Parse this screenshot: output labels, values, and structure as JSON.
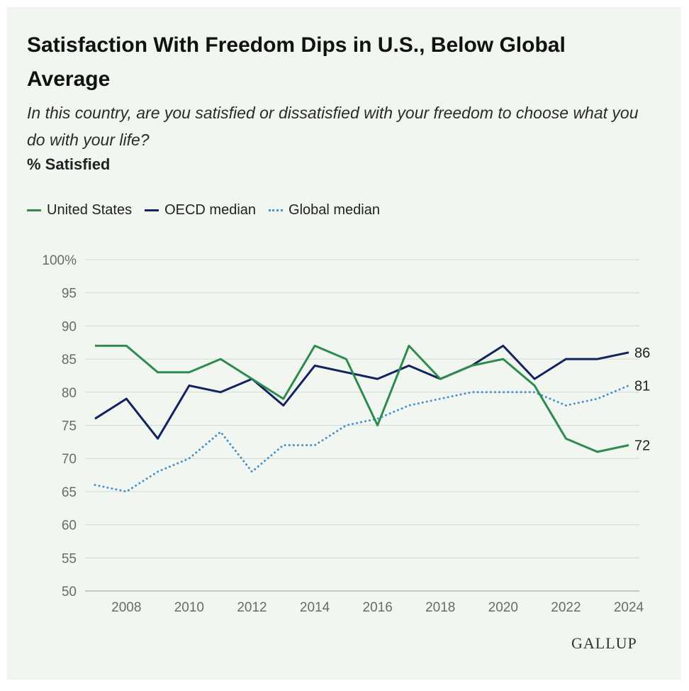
{
  "chart_data": {
    "type": "line",
    "title": "Satisfaction With Freedom Dips in U.S., Below Global Average",
    "subtitle": "In this country, are you satisfied or dissatisfied with your freedom to choose what you do with your life?",
    "unit_label": "% Satisfied",
    "ylabel": "",
    "xlabel": "",
    "ylim": [
      50,
      100
    ],
    "yticks": [
      50,
      55,
      60,
      65,
      70,
      75,
      80,
      85,
      90,
      95,
      100
    ],
    "ytick_labels": [
      "50",
      "55",
      "60",
      "65",
      "70",
      "75",
      "80",
      "85",
      "90",
      "95",
      "100%"
    ],
    "xlim": [
      2007,
      2024
    ],
    "xticks": [
      2008,
      2010,
      2012,
      2014,
      2016,
      2018,
      2020,
      2022,
      2024
    ],
    "x": [
      2007,
      2008,
      2009,
      2010,
      2011,
      2012,
      2013,
      2014,
      2015,
      2016,
      2017,
      2018,
      2019,
      2020,
      2021,
      2022,
      2023,
      2024
    ],
    "grid": true,
    "legend_position": "top-left",
    "series": [
      {
        "name": "United States",
        "color": "#2e8b4e",
        "style": "solid",
        "values": [
          87,
          87,
          83,
          83,
          85,
          82,
          79,
          87,
          85,
          75,
          87,
          82,
          84,
          85,
          81,
          73,
          71,
          72
        ],
        "end_label": "72"
      },
      {
        "name": "OECD median",
        "color": "#13235f",
        "style": "solid",
        "values": [
          76,
          79,
          73,
          81,
          80,
          82,
          78,
          84,
          83,
          82,
          84,
          82,
          84,
          87,
          82,
          85,
          85,
          86
        ],
        "end_label": "86"
      },
      {
        "name": "Global median",
        "color": "#4a90c9",
        "style": "dotted",
        "values": [
          66,
          65,
          68,
          70,
          74,
          68,
          72,
          72,
          75,
          76,
          78,
          79,
          80,
          80,
          80,
          78,
          79,
          81
        ],
        "end_label": "81"
      }
    ]
  },
  "brand": {
    "logo_text": "GALLUP"
  }
}
